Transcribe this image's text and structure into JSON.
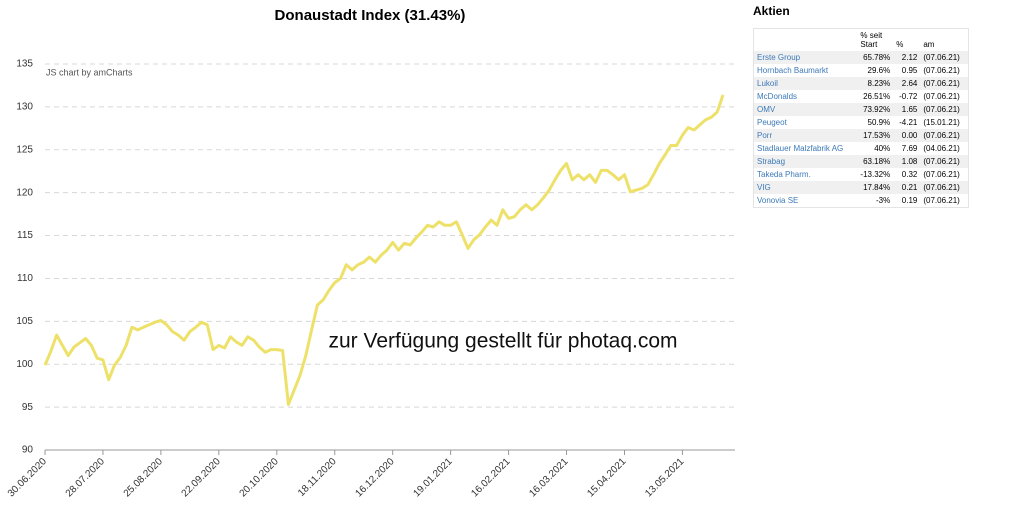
{
  "chart_data": {
    "type": "line",
    "title": "Donaustadt Index (31.43%)",
    "credit": "JS chart by amCharts",
    "watermark": "zur Verfügung gestellt für photaq.com",
    "categories": [
      "30.06.2020",
      null,
      null,
      null,
      null,
      null,
      null,
      null,
      null,
      null,
      "28.07.2020",
      null,
      null,
      null,
      null,
      null,
      null,
      null,
      null,
      null,
      "25.08.2020",
      null,
      null,
      null,
      null,
      null,
      null,
      null,
      null,
      null,
      "22.09.2020",
      null,
      null,
      null,
      null,
      null,
      null,
      null,
      null,
      null,
      "20.10.2020",
      null,
      null,
      null,
      null,
      null,
      null,
      null,
      null,
      null,
      "18.11.2020",
      null,
      null,
      null,
      null,
      null,
      null,
      null,
      null,
      null,
      "16.12.2020",
      null,
      null,
      null,
      null,
      null,
      null,
      null,
      null,
      null,
      "19.01.2021",
      null,
      null,
      null,
      null,
      null,
      null,
      null,
      null,
      null,
      "16.02.2021",
      null,
      null,
      null,
      null,
      null,
      null,
      null,
      null,
      null,
      "16.03.2021",
      null,
      null,
      null,
      null,
      null,
      null,
      null,
      null,
      null,
      "15.04.2021",
      null,
      null,
      null,
      null,
      null,
      null,
      null,
      null,
      null,
      "13.05.2021",
      null,
      null,
      null,
      null,
      null,
      null,
      null
    ],
    "values": [
      99.9,
      101.5,
      103.4,
      102.2,
      101,
      102,
      102.5,
      103,
      102.2,
      100.7,
      100.5,
      98.2,
      99.9,
      100.8,
      102.2,
      104.3,
      104,
      104.3,
      104.6,
      104.9,
      105.1,
      104.6,
      103.8,
      103.4,
      102.8,
      103.8,
      104.3,
      104.9,
      104.6,
      101.7,
      102.2,
      101.9,
      103.2,
      102.6,
      102.2,
      103.2,
      102.8,
      102,
      101.4,
      101.7,
      101.7,
      101.6,
      95.3,
      97,
      98.7,
      101,
      104,
      106.9,
      107.5,
      108.6,
      109.5,
      110,
      111.6,
      111,
      111.6,
      111.9,
      112.5,
      111.9,
      112.7,
      113.3,
      114.2,
      113.3,
      114.1,
      113.9,
      114.7,
      115.4,
      116.2,
      116,
      116.6,
      116.2,
      116.2,
      116.6,
      115.1,
      113.5,
      114.5,
      115.1,
      116,
      116.8,
      116.2,
      118,
      117,
      117.2,
      118,
      118.6,
      118,
      118.6,
      119.4,
      120.3,
      121.5,
      122.6,
      123.4,
      121.5,
      122.1,
      121.5,
      122.1,
      121.2,
      122.6,
      122.6,
      122.1,
      121.5,
      122.1,
      120.1,
      120.3,
      120.5,
      120.9,
      122.1,
      123.4,
      124.4,
      125.5,
      125.5,
      126.7,
      127.6,
      127.3,
      127.9,
      128.5,
      128.8,
      129.4,
      131.4
    ],
    "color": "#ede16a",
    "ylim": [
      90,
      135
    ],
    "yticks": [
      90,
      95,
      100,
      105,
      110,
      115,
      120,
      125,
      130,
      135
    ],
    "grid": true
  },
  "table": {
    "title": "Aktien",
    "headers": [
      "% seit Start",
      "%",
      "am"
    ],
    "rows": [
      [
        "Erste Group",
        "65.78%",
        "2.12",
        "(07.06.21)"
      ],
      [
        "Hornbach Baumarkt",
        "29.6%",
        "0.95",
        "(07.06.21)"
      ],
      [
        "Lukoil",
        "8.23%",
        "2.64",
        "(07.06.21)"
      ],
      [
        "McDonalds",
        "26.51%",
        "-0.72",
        "(07.06.21)"
      ],
      [
        "OMV",
        "73.92%",
        "1.65",
        "(07.06.21)"
      ],
      [
        "Peugeot",
        "50.9%",
        "-4.21",
        "(15.01.21)"
      ],
      [
        "Porr",
        "17.53%",
        "0.00",
        "(07.06.21)"
      ],
      [
        "Stadlauer Malzfabrik AG",
        "40%",
        "7.69",
        "(04.06.21)"
      ],
      [
        "Strabag",
        "63.18%",
        "1.08",
        "(07.06.21)"
      ],
      [
        "Takeda Pharm.",
        "-13.32%",
        "0.32",
        "(07.06.21)"
      ],
      [
        "VIG",
        "17.84%",
        "0.21",
        "(07.06.21)"
      ],
      [
        "Vonovia SE",
        "-3%",
        "0.19",
        "(07.06.21)"
      ]
    ]
  }
}
